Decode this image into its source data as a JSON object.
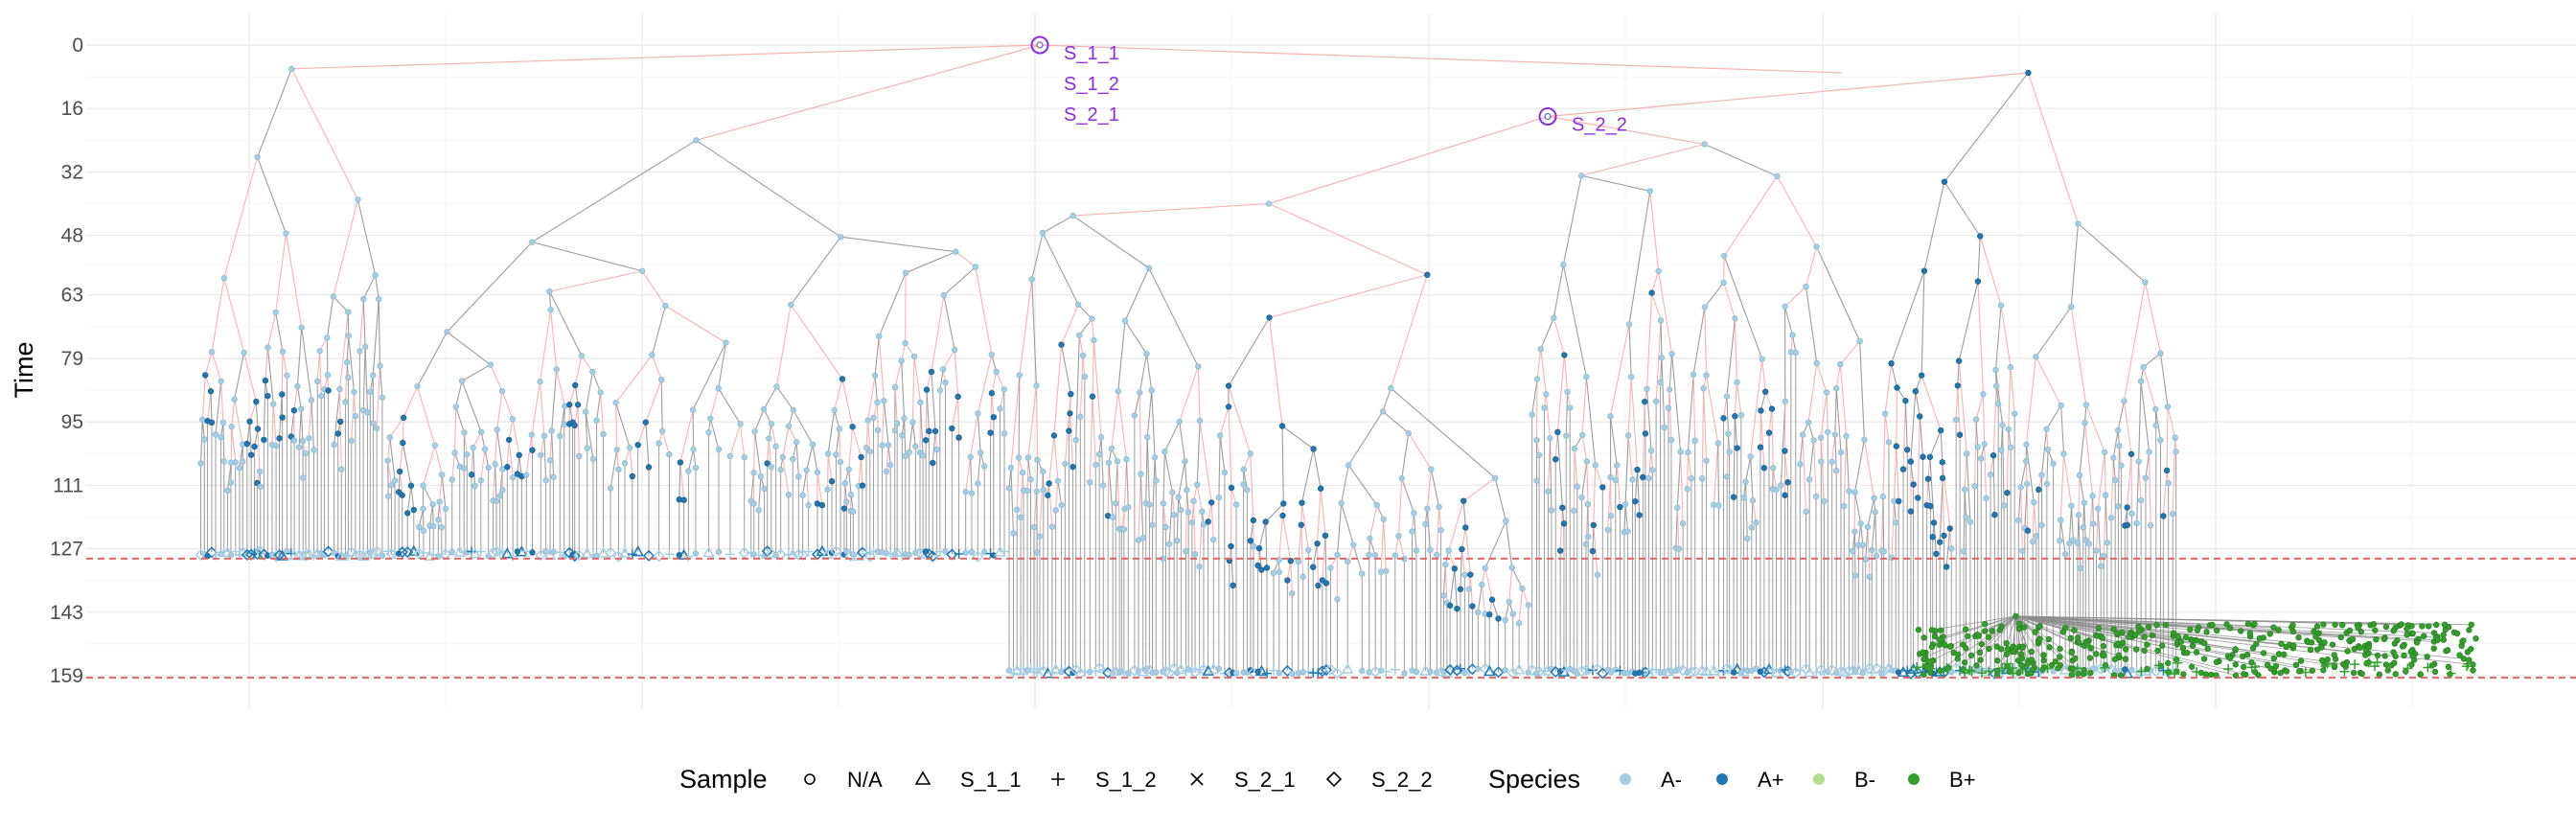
{
  "chart_data": {
    "type": "scatter",
    "subtype": "phylogenetic-tree",
    "title": "",
    "xlabel": "",
    "ylabel": "Time",
    "y_reversed": true,
    "ylim": [
      0,
      165
    ],
    "y_ticks": [
      "0",
      "16",
      "32",
      "48",
      "63",
      "79",
      "95",
      "111",
      "127",
      "143",
      "159"
    ],
    "y_tick_values": [
      0,
      16,
      32,
      48,
      63,
      79,
      95,
      111,
      127,
      143,
      159
    ],
    "grid": true,
    "reference_lines": [
      {
        "y": 129.5,
        "style": "dashed",
        "color": "#E06666"
      },
      {
        "y": 159.5,
        "style": "dashed",
        "color": "#E06666"
      }
    ],
    "edge_colors": {
      "same_species": "#8C8C8C",
      "transition": "#F4A6A6"
    },
    "legend_position": "bottom",
    "legend": {
      "sample": {
        "title": "Sample",
        "items": [
          {
            "label": "N/A",
            "shape": "circle"
          },
          {
            "label": "S_1_1",
            "shape": "triangle"
          },
          {
            "label": "S_1_2",
            "shape": "plus"
          },
          {
            "label": "S_2_1",
            "shape": "cross"
          },
          {
            "label": "S_2_2",
            "shape": "diamond"
          }
        ]
      },
      "species": {
        "title": "Species",
        "items": [
          {
            "label": "A-",
            "color": "#A6CEE3"
          },
          {
            "label": "A+",
            "color": "#1F78B4"
          },
          {
            "label": "B-",
            "color": "#B2DF8A"
          },
          {
            "label": "B+",
            "color": "#33A02C"
          }
        ]
      }
    },
    "sampled_roots": [
      {
        "x": 0.383,
        "y": 0,
        "labels": [
          "S_1_1",
          "S_1_2",
          "S_2_1"
        ],
        "color": "#8A2BE2"
      },
      {
        "x": 0.587,
        "y": 18,
        "labels": [
          "S_2_2"
        ],
        "color": "#8A2BE2"
      }
    ],
    "clades": [
      {
        "x_range": [
          0.045,
          0.12
        ],
        "y_top": 6,
        "y_bottom": 129,
        "species": "A-"
      },
      {
        "x_range": [
          0.12,
          0.37
        ],
        "y_top": 24,
        "y_bottom": 129,
        "species": "A-"
      },
      {
        "x_range": [
          0.37,
          0.58
        ],
        "y_top": 40,
        "y_bottom": 159,
        "species": "A-"
      },
      {
        "x_range": [
          0.58,
          0.72
        ],
        "y_top": 25,
        "y_bottom": 159,
        "species": "A-"
      },
      {
        "x_range": [
          0.72,
          0.84
        ],
        "y_top": 7,
        "y_bottom": 159,
        "species": "A+"
      },
      {
        "x_range": [
          0.735,
          0.96
        ],
        "y_top": 144,
        "y_bottom": 159,
        "species": "B+"
      }
    ]
  }
}
